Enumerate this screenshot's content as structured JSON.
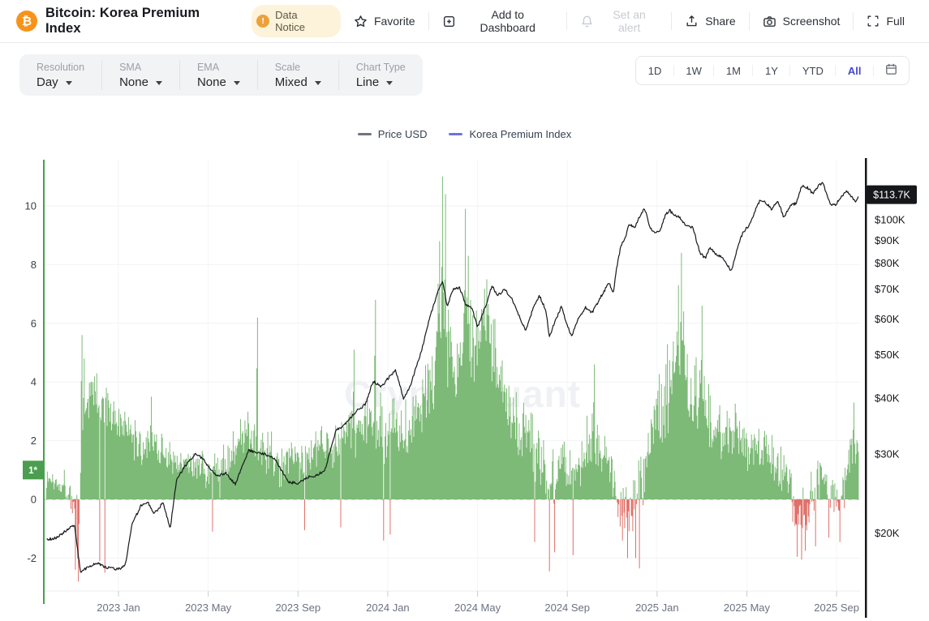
{
  "header": {
    "coin_symbol": "₿",
    "title": "Bitcoin: Korea Premium Index",
    "notice_badge": "Data Notice",
    "notice_icon": "!",
    "actions": {
      "favorite": "Favorite",
      "add_to_dashboard": "Add to Dashboard",
      "set_alert": "Set an alert",
      "share": "Share",
      "screenshot": "Screenshot",
      "full": "Full"
    }
  },
  "toolbar": {
    "controls": [
      {
        "label": "Resolution",
        "value": "Day"
      },
      {
        "label": "SMA",
        "value": "None"
      },
      {
        "label": "EMA",
        "value": "None"
      },
      {
        "label": "Scale",
        "value": "Mixed"
      },
      {
        "label": "Chart Type",
        "value": "Line"
      }
    ],
    "ranges": [
      "1D",
      "1W",
      "1M",
      "1Y",
      "YTD",
      "All"
    ],
    "active_range": "All"
  },
  "legend": [
    {
      "label": "Price USD",
      "color": "#71757d"
    },
    {
      "label": "Korea Premium Index",
      "color": "#6e72dd"
    }
  ],
  "colors": {
    "accent": "#4348cf",
    "bitcoin_orange": "#f7931a",
    "notice_bg": "#fcf3da",
    "notice_icon": "#eda13c",
    "disabled_text": "#c7cbd1"
  },
  "chart_data": {
    "type": "mixed",
    "title": "Bitcoin: Korea Premium Index",
    "watermark": "CryptoQuant",
    "x_unit": "months since 2022-10-01",
    "x_domain": [
      -0.2,
      36.0
    ],
    "x_ticks": [
      "2023 Jan",
      "2023 May",
      "2023 Sep",
      "2024 Jan",
      "2024 May",
      "2024 Sep",
      "2025 Jan",
      "2025 May",
      "2025 Sep"
    ],
    "left_axis": {
      "title": "Korea Premium Index (%)",
      "ticks": [
        10,
        8,
        6,
        4,
        2,
        0,
        -2
      ],
      "range": [
        -3.1,
        11.6
      ],
      "marker": {
        "label": "1*",
        "value": 1
      },
      "color": "#4b9e4f"
    },
    "right_axis": {
      "title": "Price USD",
      "scale": "log",
      "ticks_k": [
        100,
        90,
        80,
        70,
        60,
        50,
        40,
        30,
        20
      ],
      "labels": [
        "$100K",
        "$90K",
        "$80K",
        "$70K",
        "$60K",
        "$50K",
        "$40K",
        "$30K",
        "$20K"
      ],
      "last_price_label": "$113.7K",
      "last_price_k": 113.7
    },
    "series": [
      {
        "name": "Price USD",
        "type": "line",
        "axis": "right",
        "color": "#17181c",
        "unit": "thousand USD",
        "keypoints": [
          [
            -0.2,
            19.3
          ],
          [
            0.3,
            19.6
          ],
          [
            0.8,
            20.5
          ],
          [
            1.05,
            20.8
          ],
          [
            1.3,
            16.4
          ],
          [
            1.6,
            16.7
          ],
          [
            2.0,
            17.2
          ],
          [
            2.4,
            16.8
          ],
          [
            3.0,
            16.6
          ],
          [
            3.3,
            16.9
          ],
          [
            3.6,
            20.9
          ],
          [
            4.0,
            23.0
          ],
          [
            4.3,
            23.5
          ],
          [
            4.6,
            22.1
          ],
          [
            5.0,
            23.4
          ],
          [
            5.3,
            20.4
          ],
          [
            5.6,
            26.5
          ],
          [
            6.0,
            28.3
          ],
          [
            6.4,
            30.0
          ],
          [
            6.8,
            29.3
          ],
          [
            7.0,
            28.1
          ],
          [
            7.4,
            26.9
          ],
          [
            7.8,
            27.2
          ],
          [
            8.2,
            25.7
          ],
          [
            8.8,
            30.6
          ],
          [
            9.2,
            30.3
          ],
          [
            9.6,
            29.9
          ],
          [
            10.0,
            29.2
          ],
          [
            10.55,
            26.0
          ],
          [
            11.0,
            25.8
          ],
          [
            11.4,
            26.6
          ],
          [
            11.8,
            26.9
          ],
          [
            12.2,
            27.6
          ],
          [
            12.7,
            33.9
          ],
          [
            13.1,
            35.0
          ],
          [
            13.6,
            37.4
          ],
          [
            14.0,
            38.7
          ],
          [
            14.35,
            43.7
          ],
          [
            14.7,
            42.3
          ],
          [
            15.0,
            44.2
          ],
          [
            15.35,
            46.3
          ],
          [
            15.7,
            39.9
          ],
          [
            16.0,
            42.6
          ],
          [
            16.5,
            51.0
          ],
          [
            16.9,
            61.2
          ],
          [
            17.2,
            68.3
          ],
          [
            17.45,
            73.0
          ],
          [
            17.65,
            63.8
          ],
          [
            17.9,
            69.8
          ],
          [
            18.2,
            70.6
          ],
          [
            18.45,
            65.0
          ],
          [
            18.75,
            63.5
          ],
          [
            19.0,
            57.5
          ],
          [
            19.3,
            63.0
          ],
          [
            19.65,
            71.2
          ],
          [
            19.9,
            67.7
          ],
          [
            20.2,
            69.9
          ],
          [
            20.55,
            66.2
          ],
          [
            20.85,
            61.0
          ],
          [
            21.15,
            56.7
          ],
          [
            21.5,
            63.8
          ],
          [
            21.75,
            67.8
          ],
          [
            22.05,
            62.8
          ],
          [
            22.2,
            54.5
          ],
          [
            22.45,
            59.3
          ],
          [
            22.75,
            64.1
          ],
          [
            22.95,
            59.0
          ],
          [
            23.2,
            55.0
          ],
          [
            23.5,
            60.3
          ],
          [
            23.8,
            63.7
          ],
          [
            24.1,
            62.0
          ],
          [
            24.5,
            67.4
          ],
          [
            24.85,
            72.3
          ],
          [
            25.05,
            69.0
          ],
          [
            25.2,
            78.0
          ],
          [
            25.4,
            88.0
          ],
          [
            25.6,
            91.0
          ],
          [
            25.75,
            98.0
          ],
          [
            26.0,
            96.0
          ],
          [
            26.2,
            101.0
          ],
          [
            26.45,
            106.0
          ],
          [
            26.7,
            95.8
          ],
          [
            26.9,
            93.5
          ],
          [
            27.15,
            94.5
          ],
          [
            27.35,
            102.0
          ],
          [
            27.55,
            105.0
          ],
          [
            27.75,
            102.5
          ],
          [
            28.0,
            101.5
          ],
          [
            28.3,
            96.5
          ],
          [
            28.6,
            96.2
          ],
          [
            28.9,
            84.5
          ],
          [
            29.15,
            82.0
          ],
          [
            29.35,
            86.9
          ],
          [
            29.6,
            84.0
          ],
          [
            29.9,
            82.4
          ],
          [
            30.15,
            79.0
          ],
          [
            30.3,
            76.5
          ],
          [
            30.6,
            87.5
          ],
          [
            30.85,
            94.2
          ],
          [
            31.1,
            96.9
          ],
          [
            31.35,
            104.0
          ],
          [
            31.6,
            111.0
          ],
          [
            31.85,
            109.0
          ],
          [
            32.1,
            105.7
          ],
          [
            32.4,
            109.6
          ],
          [
            32.65,
            101.0
          ],
          [
            32.9,
            107.0
          ],
          [
            33.2,
            108.9
          ],
          [
            33.45,
            119.0
          ],
          [
            33.7,
            117.9
          ],
          [
            33.95,
            114.2
          ],
          [
            34.2,
            119.5
          ],
          [
            34.4,
            120.5
          ],
          [
            34.7,
            108.5
          ],
          [
            34.95,
            108.0
          ],
          [
            35.2,
            112.5
          ],
          [
            35.45,
            116.2
          ],
          [
            35.7,
            112.0
          ],
          [
            35.85,
            109.5
          ],
          [
            36.0,
            113.7
          ]
        ]
      },
      {
        "name": "Korea Premium Index",
        "type": "bar",
        "axis": "left",
        "color_pos": "#7dba77",
        "color_neg": "#e0716a",
        "unit": "percent",
        "envelope": [
          [
            -0.2,
            0.7,
            0.5
          ],
          [
            0.5,
            0.6,
            0.55
          ],
          [
            0.9,
            0.3,
            0.8
          ],
          [
            1.1,
            -0.9,
            1.3
          ],
          [
            1.35,
            0.5,
            1.5
          ],
          [
            1.55,
            3.2,
            1.5
          ],
          [
            1.8,
            3.8,
            1.1
          ],
          [
            2.1,
            3.4,
            1.1
          ],
          [
            2.5,
            3.1,
            1.0
          ],
          [
            3.0,
            2.6,
            0.9
          ],
          [
            3.5,
            2.2,
            0.85
          ],
          [
            4.0,
            1.8,
            0.8
          ],
          [
            4.5,
            2.1,
            0.9
          ],
          [
            5.0,
            1.6,
            0.75
          ],
          [
            5.5,
            1.3,
            0.65
          ],
          [
            6.0,
            1.3,
            0.6
          ],
          [
            6.5,
            1.0,
            0.7
          ],
          [
            7.0,
            1.1,
            0.9
          ],
          [
            7.5,
            0.85,
            0.9
          ],
          [
            8.0,
            1.5,
            0.9
          ],
          [
            8.5,
            2.0,
            1.0
          ],
          [
            9.0,
            2.2,
            1.2
          ],
          [
            9.5,
            1.6,
            0.9
          ],
          [
            10.0,
            1.4,
            0.9
          ],
          [
            10.5,
            1.1,
            0.95
          ],
          [
            11.0,
            1.3,
            1.0
          ],
          [
            11.5,
            1.5,
            0.8
          ],
          [
            12.0,
            1.6,
            0.9
          ],
          [
            12.5,
            1.9,
            0.95
          ],
          [
            13.0,
            2.2,
            1.0
          ],
          [
            13.5,
            2.4,
            1.1
          ],
          [
            14.0,
            2.5,
            1.1
          ],
          [
            14.5,
            2.6,
            1.3
          ],
          [
            14.9,
            2.2,
            1.5
          ],
          [
            15.3,
            2.6,
            1.2
          ],
          [
            15.7,
            2.6,
            1.2
          ],
          [
            16.2,
            2.9,
            1.3
          ],
          [
            16.6,
            3.5,
            1.4
          ],
          [
            17.0,
            4.2,
            1.6
          ],
          [
            17.4,
            6.3,
            2.3
          ],
          [
            17.7,
            5.6,
            2.0
          ],
          [
            18.0,
            4.6,
            1.8
          ],
          [
            18.5,
            5.6,
            2.1
          ],
          [
            19.0,
            5.7,
            1.7
          ],
          [
            19.4,
            6.2,
            1.4
          ],
          [
            19.7,
            5.0,
            1.5
          ],
          [
            20.0,
            3.9,
            1.5
          ],
          [
            20.5,
            2.9,
            1.2
          ],
          [
            21.0,
            2.6,
            1.3
          ],
          [
            21.5,
            1.9,
            1.3
          ],
          [
            22.0,
            1.1,
            1.3
          ],
          [
            22.3,
            0.6,
            1.2
          ],
          [
            22.7,
            1.6,
            1.0
          ],
          [
            23.0,
            1.2,
            1.2
          ],
          [
            23.3,
            0.9,
            1.2
          ],
          [
            23.7,
            1.7,
            1.0
          ],
          [
            24.0,
            2.1,
            1.2
          ],
          [
            24.5,
            1.8,
            1.0
          ],
          [
            25.0,
            1.0,
            1.0
          ],
          [
            25.4,
            -0.4,
            1.1
          ],
          [
            25.8,
            -0.2,
            1.3
          ],
          [
            26.2,
            0.3,
            1.3
          ],
          [
            26.6,
            1.4,
            1.3
          ],
          [
            27.0,
            2.8,
            1.7
          ],
          [
            27.4,
            3.5,
            1.9
          ],
          [
            27.8,
            4.4,
            2.0
          ],
          [
            28.15,
            5.2,
            2.2
          ],
          [
            28.5,
            3.4,
            1.5
          ],
          [
            28.9,
            4.0,
            1.7
          ],
          [
            29.3,
            2.9,
            1.4
          ],
          [
            29.7,
            2.4,
            1.3
          ],
          [
            30.1,
            2.1,
            1.2
          ],
          [
            30.5,
            2.5,
            1.3
          ],
          [
            30.9,
            1.9,
            1.1
          ],
          [
            31.3,
            1.6,
            1.1
          ],
          [
            31.7,
            1.8,
            1.1
          ],
          [
            32.1,
            1.5,
            1.0
          ],
          [
            32.5,
            1.2,
            1.0
          ],
          [
            32.9,
            0.6,
            1.0
          ],
          [
            33.2,
            -0.6,
            1.1
          ],
          [
            33.6,
            -0.4,
            1.2
          ],
          [
            34.0,
            0.3,
            1.2
          ],
          [
            34.4,
            0.7,
            1.1
          ],
          [
            34.8,
            0.1,
            1.0
          ],
          [
            35.1,
            -0.2,
            1.0
          ],
          [
            35.4,
            0.6,
            0.9
          ],
          [
            35.7,
            1.6,
            1.0
          ],
          [
            36.0,
            1.7,
            0.8
          ]
        ],
        "spikes": [
          [
            1.38,
            5.6
          ],
          [
            1.48,
            4.8
          ],
          [
            4.45,
            3.5
          ],
          [
            9.2,
            6.2
          ],
          [
            13.5,
            5.1
          ],
          [
            14.45,
            6.8
          ],
          [
            17.3,
            8.8
          ],
          [
            17.45,
            11.0
          ],
          [
            17.58,
            10.4
          ],
          [
            18.45,
            9.9
          ],
          [
            18.6,
            8.3
          ],
          [
            19.42,
            7.5
          ],
          [
            24.2,
            4.6
          ],
          [
            27.95,
            7.3
          ],
          [
            28.1,
            8.4
          ],
          [
            29.0,
            6.6
          ],
          [
            35.78,
            3.3
          ],
          [
            1.08,
            -2.4
          ],
          [
            1.22,
            -2.8
          ],
          [
            2.15,
            -2.1
          ],
          [
            2.38,
            -2.5
          ],
          [
            7.2,
            -1.1
          ],
          [
            11.3,
            -1.05
          ],
          [
            12.9,
            -0.95
          ],
          [
            14.8,
            -1.4
          ],
          [
            15.1,
            -1.2
          ],
          [
            21.55,
            -1.45
          ],
          [
            22.22,
            -2.45
          ],
          [
            22.42,
            -1.8
          ],
          [
            23.25,
            -1.9
          ],
          [
            25.45,
            -1.4
          ],
          [
            25.7,
            -2.0
          ],
          [
            26.05,
            -2.0
          ],
          [
            26.2,
            -2.35
          ],
          [
            33.25,
            -1.95
          ],
          [
            33.45,
            -2.05
          ],
          [
            33.6,
            -1.75
          ],
          [
            34.05,
            -1.6
          ],
          [
            34.65,
            -1.3
          ],
          [
            35.15,
            -1.45
          ]
        ]
      }
    ]
  }
}
